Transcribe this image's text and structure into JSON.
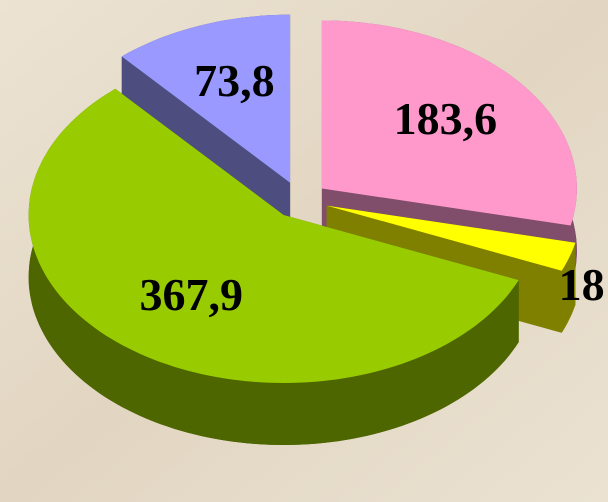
{
  "chart_data": {
    "type": "pie",
    "values": [
      183.6,
      18,
      367.9,
      73.8
    ],
    "value_labels": [
      "183,6",
      "18",
      "367,9",
      "73,8"
    ],
    "colors": [
      "#ff99cc",
      "#ffff00",
      "#99cc00",
      "#9999ff"
    ],
    "side_colors": [
      "#804d6a",
      "#808000",
      "#4d6600",
      "#4d4d80"
    ],
    "exploded": true,
    "three_d": true
  }
}
